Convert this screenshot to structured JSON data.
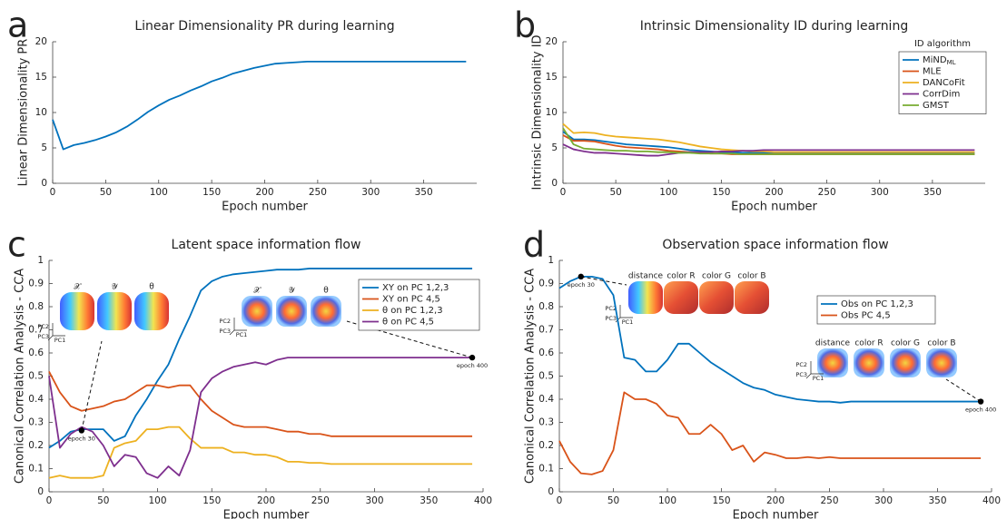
{
  "chart_data": [
    {
      "type": "line",
      "panel": "a",
      "title": "Linear Dimensionality PR during learning",
      "x_label": "Epoch number",
      "y_label": "Linear Dimensionality PR",
      "xlim": [
        0,
        400
      ],
      "xticks": [
        0,
        50,
        100,
        150,
        200,
        250,
        300,
        350
      ],
      "ylim": [
        0,
        20
      ],
      "yticks": [
        0,
        5,
        10,
        15,
        20
      ],
      "x": [
        0,
        10,
        20,
        30,
        40,
        50,
        60,
        70,
        80,
        90,
        100,
        110,
        120,
        130,
        140,
        150,
        160,
        170,
        180,
        190,
        200,
        210,
        220,
        230,
        240,
        250,
        260,
        270,
        280,
        290,
        300,
        310,
        320,
        330,
        340,
        350,
        360,
        370,
        380,
        390
      ],
      "series": [
        {
          "name": null,
          "color": "#0072bd",
          "values": [
            9,
            4.8,
            5.4,
            5.7,
            6.1,
            6.6,
            7.2,
            8.0,
            9.0,
            10.1,
            11.0,
            11.8,
            12.4,
            13.1,
            13.7,
            14.4,
            14.9,
            15.5,
            15.9,
            16.3,
            16.6,
            16.9,
            17.0,
            17.1,
            17.2,
            17.2,
            17.2,
            17.2,
            17.2,
            17.2,
            17.2,
            17.2,
            17.2,
            17.2,
            17.2,
            17.2,
            17.2,
            17.2,
            17.2,
            17.2
          ]
        }
      ]
    },
    {
      "type": "line",
      "panel": "b",
      "title": "Intrinsic Dimensionality ID during learning",
      "x_label": "Epoch number",
      "y_label": "Intrinsic Dimensionality ID",
      "legend_title": "ID algorithm",
      "xlim": [
        0,
        400
      ],
      "xticks": [
        0,
        50,
        100,
        150,
        200,
        250,
        300,
        350
      ],
      "ylim": [
        0,
        20
      ],
      "yticks": [
        0,
        5,
        10,
        15,
        20
      ],
      "x": [
        0,
        10,
        20,
        30,
        40,
        50,
        60,
        70,
        80,
        90,
        100,
        110,
        120,
        130,
        140,
        150,
        160,
        170,
        180,
        190,
        200,
        210,
        220,
        230,
        240,
        250,
        260,
        270,
        280,
        290,
        300,
        310,
        320,
        330,
        340,
        350,
        360,
        370,
        380,
        390
      ],
      "series": [
        {
          "name": "MiND_ML",
          "color": "#0072bd",
          "values": [
            7.3,
            6.2,
            6.2,
            6.1,
            5.9,
            5.7,
            5.5,
            5.4,
            5.3,
            5.2,
            5.1,
            4.9,
            4.7,
            4.6,
            4.5,
            4.4,
            4.4,
            4.3,
            4.3,
            4.3,
            4.3,
            4.3,
            4.3,
            4.3,
            4.3,
            4.3,
            4.3,
            4.3,
            4.3,
            4.3,
            4.3,
            4.3,
            4.3,
            4.3,
            4.3,
            4.3,
            4.3,
            4.3,
            4.3,
            4.3
          ]
        },
        {
          "name": "MLE",
          "color": "#d95319",
          "values": [
            6.8,
            6.0,
            6.0,
            5.9,
            5.6,
            5.3,
            5.1,
            5.0,
            4.9,
            4.8,
            4.6,
            4.5,
            4.4,
            4.3,
            4.2,
            4.2,
            4.1,
            4.1,
            4.1,
            4.1,
            4.1,
            4.1,
            4.1,
            4.1,
            4.1,
            4.1,
            4.1,
            4.1,
            4.1,
            4.1,
            4.1,
            4.1,
            4.1,
            4.1,
            4.1,
            4.1,
            4.1,
            4.1,
            4.1,
            4.1
          ]
        },
        {
          "name": "DANCoFit",
          "color": "#edb120",
          "values": [
            8.4,
            7.1,
            7.2,
            7.1,
            6.8,
            6.6,
            6.5,
            6.4,
            6.3,
            6.2,
            6.0,
            5.8,
            5.5,
            5.2,
            5.0,
            4.8,
            4.7,
            4.6,
            4.5,
            4.5,
            4.4,
            4.4,
            4.4,
            4.4,
            4.4,
            4.4,
            4.4,
            4.4,
            4.4,
            4.4,
            4.4,
            4.4,
            4.4,
            4.4,
            4.4,
            4.4,
            4.4,
            4.4,
            4.4,
            4.4
          ]
        },
        {
          "name": "CorrDim",
          "color": "#7e2f8e",
          "values": [
            5.5,
            4.8,
            4.5,
            4.3,
            4.3,
            4.2,
            4.1,
            4.0,
            3.9,
            3.9,
            4.1,
            4.3,
            4.4,
            4.4,
            4.4,
            4.5,
            4.5,
            4.6,
            4.6,
            4.7,
            4.7,
            4.7,
            4.7,
            4.7,
            4.7,
            4.7,
            4.7,
            4.7,
            4.7,
            4.7,
            4.7,
            4.7,
            4.7,
            4.7,
            4.7,
            4.7,
            4.7,
            4.7,
            4.7,
            4.7
          ]
        },
        {
          "name": "GMST",
          "color": "#77ac30",
          "values": [
            7.8,
            5.5,
            4.9,
            4.8,
            4.7,
            4.6,
            4.6,
            4.5,
            4.5,
            4.4,
            4.4,
            4.3,
            4.3,
            4.2,
            4.2,
            4.2,
            4.2,
            4.1,
            4.1,
            4.1,
            4.1,
            4.1,
            4.1,
            4.1,
            4.1,
            4.1,
            4.1,
            4.1,
            4.1,
            4.1,
            4.1,
            4.1,
            4.1,
            4.1,
            4.1,
            4.1,
            4.1,
            4.1,
            4.1,
            4.1
          ]
        }
      ]
    },
    {
      "type": "line",
      "panel": "c",
      "title": "Latent space information flow",
      "x_label": "Epoch number",
      "y_label": "Canonical Correlation Analysis - CCA",
      "xlim": [
        0,
        400
      ],
      "xticks": [
        0,
        50,
        100,
        150,
        200,
        250,
        300,
        350,
        400
      ],
      "ylim": [
        0,
        1
      ],
      "yticks": [
        0,
        0.1,
        0.2,
        0.3,
        0.4,
        0.5,
        0.6,
        0.7,
        0.8,
        0.9,
        1
      ],
      "x": [
        0,
        10,
        20,
        30,
        40,
        50,
        60,
        70,
        80,
        90,
        100,
        110,
        120,
        130,
        140,
        150,
        160,
        170,
        180,
        190,
        200,
        210,
        220,
        230,
        240,
        250,
        260,
        270,
        280,
        290,
        300,
        310,
        320,
        330,
        340,
        350,
        360,
        370,
        380,
        390
      ],
      "series": [
        {
          "name": "XY on PC 1,2,3",
          "color": "#0072bd",
          "values": [
            0.19,
            0.22,
            0.26,
            0.27,
            0.27,
            0.27,
            0.22,
            0.24,
            0.33,
            0.4,
            0.48,
            0.55,
            0.66,
            0.76,
            0.87,
            0.91,
            0.93,
            0.94,
            0.945,
            0.95,
            0.955,
            0.96,
            0.96,
            0.96,
            0.965,
            0.965,
            0.965,
            0.965,
            0.965,
            0.965,
            0.965,
            0.965,
            0.965,
            0.965,
            0.965,
            0.965,
            0.965,
            0.965,
            0.965,
            0.965
          ]
        },
        {
          "name": "XY on PC 4,5",
          "color": "#d95319",
          "values": [
            0.52,
            0.43,
            0.37,
            0.35,
            0.36,
            0.37,
            0.39,
            0.4,
            0.43,
            0.46,
            0.46,
            0.45,
            0.46,
            0.46,
            0.4,
            0.35,
            0.32,
            0.29,
            0.28,
            0.28,
            0.28,
            0.27,
            0.26,
            0.26,
            0.25,
            0.25,
            0.24,
            0.24,
            0.24,
            0.24,
            0.24,
            0.24,
            0.24,
            0.24,
            0.24,
            0.24,
            0.24,
            0.24,
            0.24,
            0.24
          ]
        },
        {
          "name": "θ on PC 1,2,3",
          "color": "#edb120",
          "values": [
            0.06,
            0.07,
            0.06,
            0.06,
            0.06,
            0.07,
            0.19,
            0.21,
            0.22,
            0.27,
            0.27,
            0.28,
            0.28,
            0.23,
            0.19,
            0.19,
            0.19,
            0.17,
            0.17,
            0.16,
            0.16,
            0.15,
            0.13,
            0.13,
            0.125,
            0.125,
            0.12,
            0.12,
            0.12,
            0.12,
            0.12,
            0.12,
            0.12,
            0.12,
            0.12,
            0.12,
            0.12,
            0.12,
            0.12,
            0.12
          ]
        },
        {
          "name": "θ on PC 4,5",
          "color": "#7e2f8e",
          "values": [
            0.5,
            0.19,
            0.25,
            0.28,
            0.26,
            0.2,
            0.11,
            0.16,
            0.15,
            0.08,
            0.06,
            0.11,
            0.07,
            0.18,
            0.43,
            0.49,
            0.52,
            0.54,
            0.55,
            0.56,
            0.55,
            0.57,
            0.58,
            0.58,
            0.58,
            0.58,
            0.58,
            0.58,
            0.58,
            0.58,
            0.58,
            0.58,
            0.58,
            0.58,
            0.58,
            0.58,
            0.58,
            0.58,
            0.58,
            0.58
          ]
        }
      ],
      "annotations": [
        {
          "text": "epoch 30",
          "x": 30,
          "y": 0.265
        },
        {
          "text": "epoch 400",
          "x": 390,
          "y": 0.58
        }
      ],
      "insets": [
        {
          "labels": [
            "𝒳",
            "𝒴",
            "θ"
          ]
        },
        {
          "labels": [
            "𝒳",
            "𝒴",
            "θ"
          ]
        }
      ],
      "inset_axes": [
        "PC1",
        "PC2",
        "PC3"
      ]
    },
    {
      "type": "line",
      "panel": "d",
      "title": "Observation space information flow",
      "x_label": "Epoch number",
      "y_label": "Canonical Correlation Analysis - CCA",
      "xlim": [
        0,
        400
      ],
      "xticks": [
        0,
        50,
        100,
        150,
        200,
        250,
        300,
        350,
        400
      ],
      "ylim": [
        0,
        1
      ],
      "yticks": [
        0,
        0.1,
        0.2,
        0.3,
        0.4,
        0.5,
        0.6,
        0.7,
        0.8,
        0.9,
        1
      ],
      "x": [
        0,
        10,
        20,
        30,
        40,
        50,
        60,
        70,
        80,
        90,
        100,
        110,
        120,
        130,
        140,
        150,
        160,
        170,
        180,
        190,
        200,
        210,
        220,
        230,
        240,
        250,
        260,
        270,
        280,
        290,
        300,
        310,
        320,
        330,
        340,
        350,
        360,
        370,
        380,
        390
      ],
      "series": [
        {
          "name": "Obs on PC 1,2,3",
          "color": "#0072bd",
          "values": [
            0.88,
            0.91,
            0.93,
            0.93,
            0.92,
            0.85,
            0.58,
            0.57,
            0.52,
            0.52,
            0.57,
            0.64,
            0.64,
            0.6,
            0.56,
            0.53,
            0.5,
            0.47,
            0.45,
            0.44,
            0.42,
            0.41,
            0.4,
            0.395,
            0.39,
            0.39,
            0.385,
            0.39,
            0.39,
            0.39,
            0.39,
            0.39,
            0.39,
            0.39,
            0.39,
            0.39,
            0.39,
            0.39,
            0.39,
            0.39
          ]
        },
        {
          "name": "Obs PC 4,5",
          "color": "#d95319",
          "values": [
            0.22,
            0.13,
            0.08,
            0.075,
            0.09,
            0.18,
            0.43,
            0.4,
            0.4,
            0.38,
            0.33,
            0.32,
            0.25,
            0.25,
            0.29,
            0.25,
            0.18,
            0.2,
            0.13,
            0.17,
            0.16,
            0.145,
            0.145,
            0.15,
            0.145,
            0.15,
            0.145,
            0.145,
            0.145,
            0.145,
            0.145,
            0.145,
            0.145,
            0.145,
            0.145,
            0.145,
            0.145,
            0.145,
            0.145,
            0.145
          ]
        }
      ],
      "annotations": [
        {
          "text": "epoch 30",
          "x": 20,
          "y": 0.93
        },
        {
          "text": "epoch 400",
          "x": 390,
          "y": 0.39
        }
      ],
      "insets": [
        {
          "labels": [
            "distance",
            "color R",
            "color G",
            "color B"
          ]
        },
        {
          "labels": [
            "distance",
            "color R",
            "color G",
            "color B"
          ]
        }
      ],
      "inset_axes": [
        "PC1",
        "PC2",
        "PC3"
      ]
    }
  ]
}
